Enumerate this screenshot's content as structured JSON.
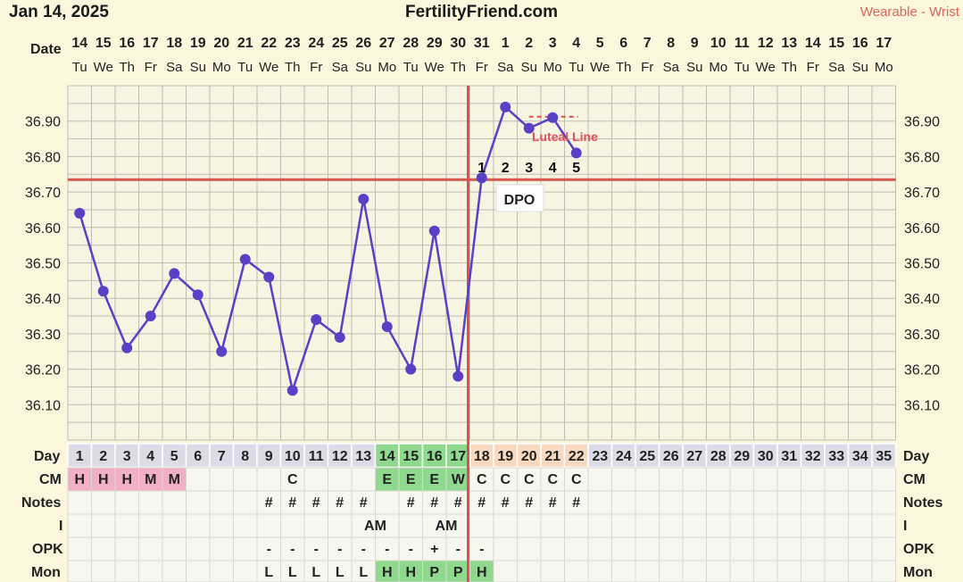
{
  "header": {
    "date": "Jan 14, 2025",
    "site": "FertilityFriend.com",
    "source": "Wearable - Wrist"
  },
  "labels": {
    "date_row": "Date",
    "day_row": "Day",
    "day_row_right": "Day",
    "luteal": "Luteal Line",
    "dpo": "DPO"
  },
  "calendar": {
    "dates": [
      "14",
      "15",
      "16",
      "17",
      "18",
      "19",
      "20",
      "21",
      "22",
      "23",
      "24",
      "25",
      "26",
      "27",
      "28",
      "29",
      "30",
      "31",
      "1",
      "2",
      "3",
      "4",
      "5",
      "6",
      "7",
      "8",
      "9",
      "10",
      "11",
      "12",
      "13",
      "14",
      "15",
      "16",
      "17"
    ],
    "weekdays": [
      "Tu",
      "We",
      "Th",
      "Fr",
      "Sa",
      "Su",
      "Mo",
      "Tu",
      "We",
      "Th",
      "Fr",
      "Sa",
      "Su",
      "Mo",
      "Tu",
      "We",
      "Th",
      "Fr",
      "Sa",
      "Su",
      "Mo",
      "Tu",
      "We",
      "Th",
      "Fr",
      "Sa",
      "Su",
      "Mo",
      "Tu",
      "We",
      "Th",
      "Fr",
      "Sa",
      "Su",
      "Mo"
    ],
    "cycle_days": [
      "1",
      "2",
      "3",
      "4",
      "5",
      "6",
      "7",
      "8",
      "9",
      "10",
      "11",
      "12",
      "13",
      "14",
      "15",
      "16",
      "17",
      "18",
      "19",
      "20",
      "21",
      "22",
      "23",
      "24",
      "25",
      "26",
      "27",
      "28",
      "29",
      "30",
      "31",
      "32",
      "33",
      "34",
      "35"
    ]
  },
  "rows": [
    {
      "label": "CM",
      "cells": {
        "1": "H",
        "2": "H",
        "3": "H",
        "4": "M",
        "5": "M",
        "10": "C",
        "14": "E",
        "15": "E",
        "16": "E",
        "17": "W",
        "18": "C",
        "19": "C",
        "20": "C",
        "21": "C",
        "22": "C"
      }
    },
    {
      "label": "Notes",
      "cells": {
        "9": "#",
        "10": "#",
        "11": "#",
        "12": "#",
        "13": "#",
        "15": "#",
        "16": "#",
        "17": "#",
        "18": "#",
        "19": "#",
        "20": "#",
        "21": "#",
        "22": "#"
      }
    },
    {
      "label": "I",
      "cells": {
        "13": "AM",
        "16": "AM"
      }
    },
    {
      "label": "OPK",
      "cells": {
        "9": "-",
        "10": "-",
        "11": "-",
        "12": "-",
        "13": "-",
        "14": "-",
        "15": "-",
        "16": "+",
        "17": "-",
        "18": "-"
      }
    },
    {
      "label": "Mon",
      "cells": {
        "9": "L",
        "10": "L",
        "11": "L",
        "12": "L",
        "13": "L",
        "14": "H",
        "15": "H",
        "16": "P",
        "17": "P",
        "18": "H"
      }
    }
  ],
  "colors": {
    "background": "#fbf6dc",
    "grid": "#bdbdb3",
    "line": "#5a3fc7",
    "cover_line": "#d9534f",
    "luteal": "#e0505a",
    "menses_cell": "#f2b0c6",
    "fertile_cell": "#8fd98f",
    "luteal_cell": "#f8d9bf",
    "day_cell": "#dcdce8"
  },
  "chart_data": {
    "type": "line",
    "x": [
      1,
      2,
      3,
      4,
      5,
      6,
      7,
      8,
      9,
      10,
      11,
      12,
      13,
      14,
      15,
      16,
      17,
      18,
      19,
      20,
      21,
      22
    ],
    "series": [
      {
        "values": [
          36.64,
          36.42,
          36.26,
          36.35,
          36.47,
          36.41,
          36.25,
          36.51,
          36.46,
          36.14,
          36.34,
          36.29,
          36.68,
          36.32,
          36.2,
          36.59,
          36.18,
          36.74,
          36.94,
          36.88,
          36.91,
          36.81
        ]
      }
    ],
    "xlim": [
      1,
      35
    ],
    "ylim": [
      36.0,
      37.0
    ],
    "yticks": [
      "36.10",
      "36.20",
      "36.30",
      "36.40",
      "36.50",
      "36.60",
      "36.70",
      "36.80",
      "36.90"
    ],
    "cover_line": 36.735,
    "ovulation_day": 17,
    "dpo_labels": [
      "1",
      "2",
      "3",
      "4",
      "5"
    ],
    "grid": true,
    "menses_days": [
      1,
      2,
      3,
      4,
      5
    ],
    "fertile_days": [
      14,
      15,
      16,
      17
    ],
    "luteal_days": [
      18,
      19,
      20,
      21,
      22
    ]
  }
}
